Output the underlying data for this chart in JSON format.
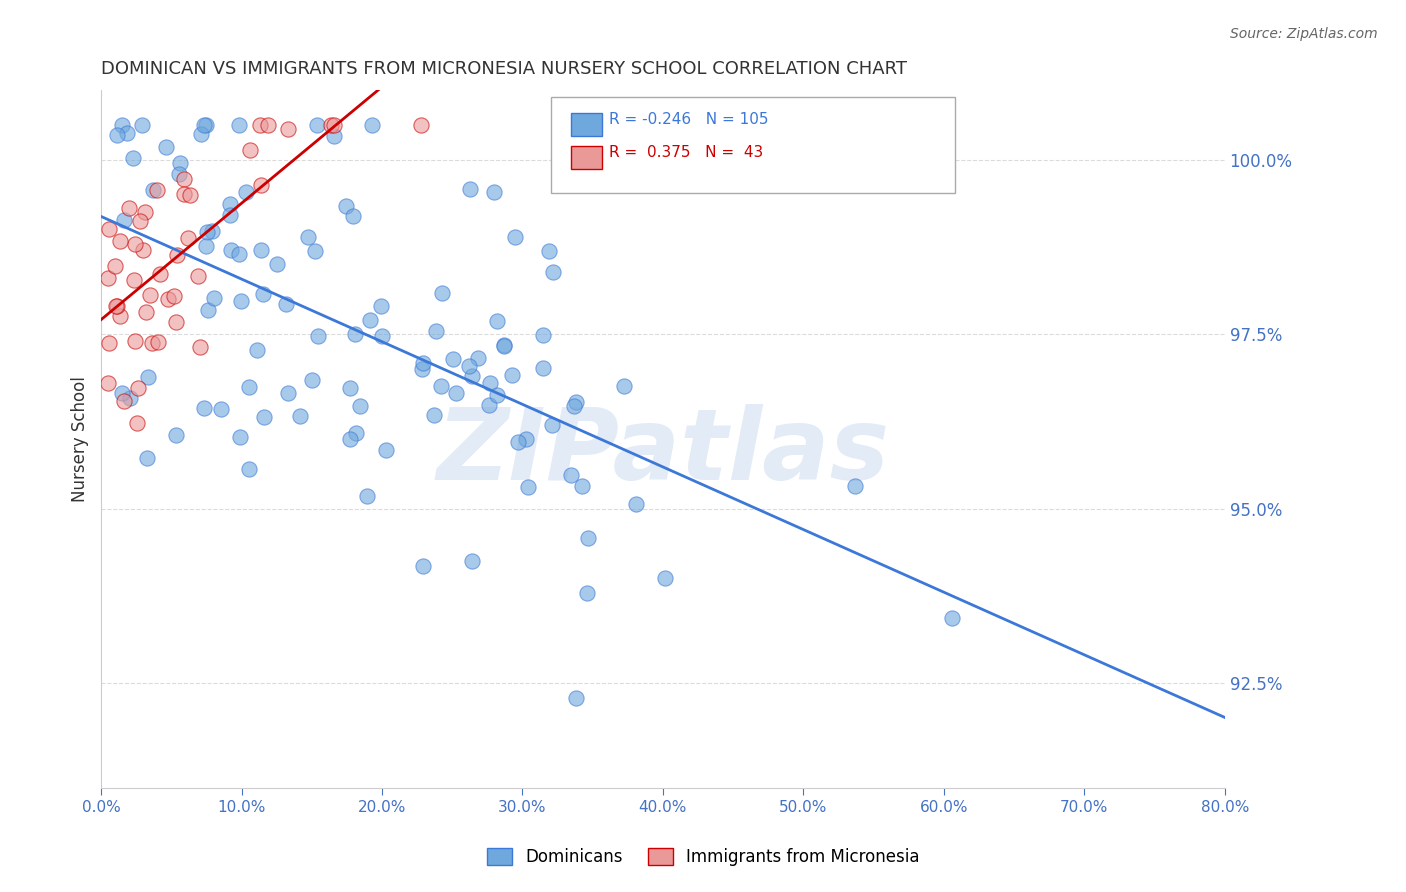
{
  "title": "DOMINICAN VS IMMIGRANTS FROM MICRONESIA NURSERY SCHOOL CORRELATION CHART",
  "source": "Source: ZipAtlas.com",
  "ylabel": "Nursery School",
  "xlim": [
    0.0,
    0.8
  ],
  "ylim": [
    0.91,
    1.01
  ],
  "yticks": [
    0.925,
    0.95,
    0.975,
    1.0
  ],
  "ytick_labels": [
    "92.5%",
    "95.0%",
    "97.5%",
    "100.0%"
  ],
  "xticks": [
    0.0,
    0.1,
    0.2,
    0.3,
    0.4,
    0.5,
    0.6,
    0.7,
    0.8
  ],
  "xtick_labels": [
    "0.0%",
    "10.0%",
    "20.0%",
    "30.0%",
    "40.0%",
    "50.0%",
    "60.0%",
    "70.0%",
    "80.0%"
  ],
  "blue_color": "#6fa8dc",
  "pink_color": "#ea9999",
  "blue_line_color": "#3c78d8",
  "pink_line_color": "#cc0000",
  "blue_R": -0.246,
  "blue_N": 105,
  "pink_R": 0.375,
  "pink_N": 43,
  "watermark": "ZIPatlas",
  "watermark_color": "#c8d8f0",
  "background_color": "#ffffff",
  "grid_color": "#cccccc",
  "tick_color": "#4472c4",
  "axis_color": "#cccccc",
  "legend_label_blue": "Dominicans",
  "legend_label_pink": "Immigrants from Micronesia"
}
